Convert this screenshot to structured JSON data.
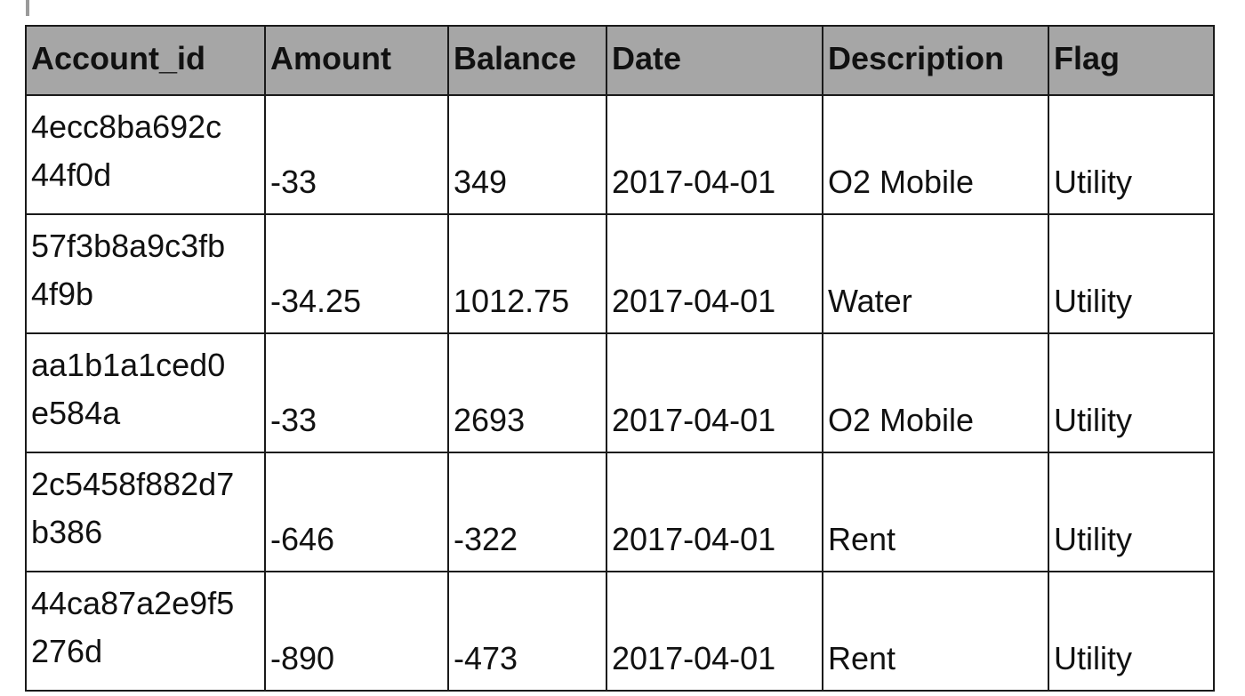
{
  "table": {
    "headers": [
      "Account_id",
      "Amount",
      "Balance",
      "Date",
      "Description",
      "Flag"
    ],
    "rows": [
      [
        "4ecc8ba692c\n44f0d",
        "-33",
        "349",
        "2017-04-01",
        "O2 Mobile",
        "Utility"
      ],
      [
        "57f3b8a9c3fb\n4f9b",
        "-34.25",
        "1012.75",
        "2017-04-01",
        "Water",
        "Utility"
      ],
      [
        "aa1b1a1ced0\ne584a",
        "-33",
        "2693",
        "2017-04-01",
        "O2 Mobile",
        "Utility"
      ],
      [
        "2c5458f882d7\nb386",
        "-646",
        "-322",
        "2017-04-01",
        "Rent",
        "Utility"
      ],
      [
        "44ca87a2e9f5\n276d",
        "-890",
        "-473",
        "2017-04-01",
        "Rent",
        "Utility"
      ]
    ]
  },
  "colors": {
    "header_background": "#a6a6a6",
    "border": "#1a1a1a"
  }
}
